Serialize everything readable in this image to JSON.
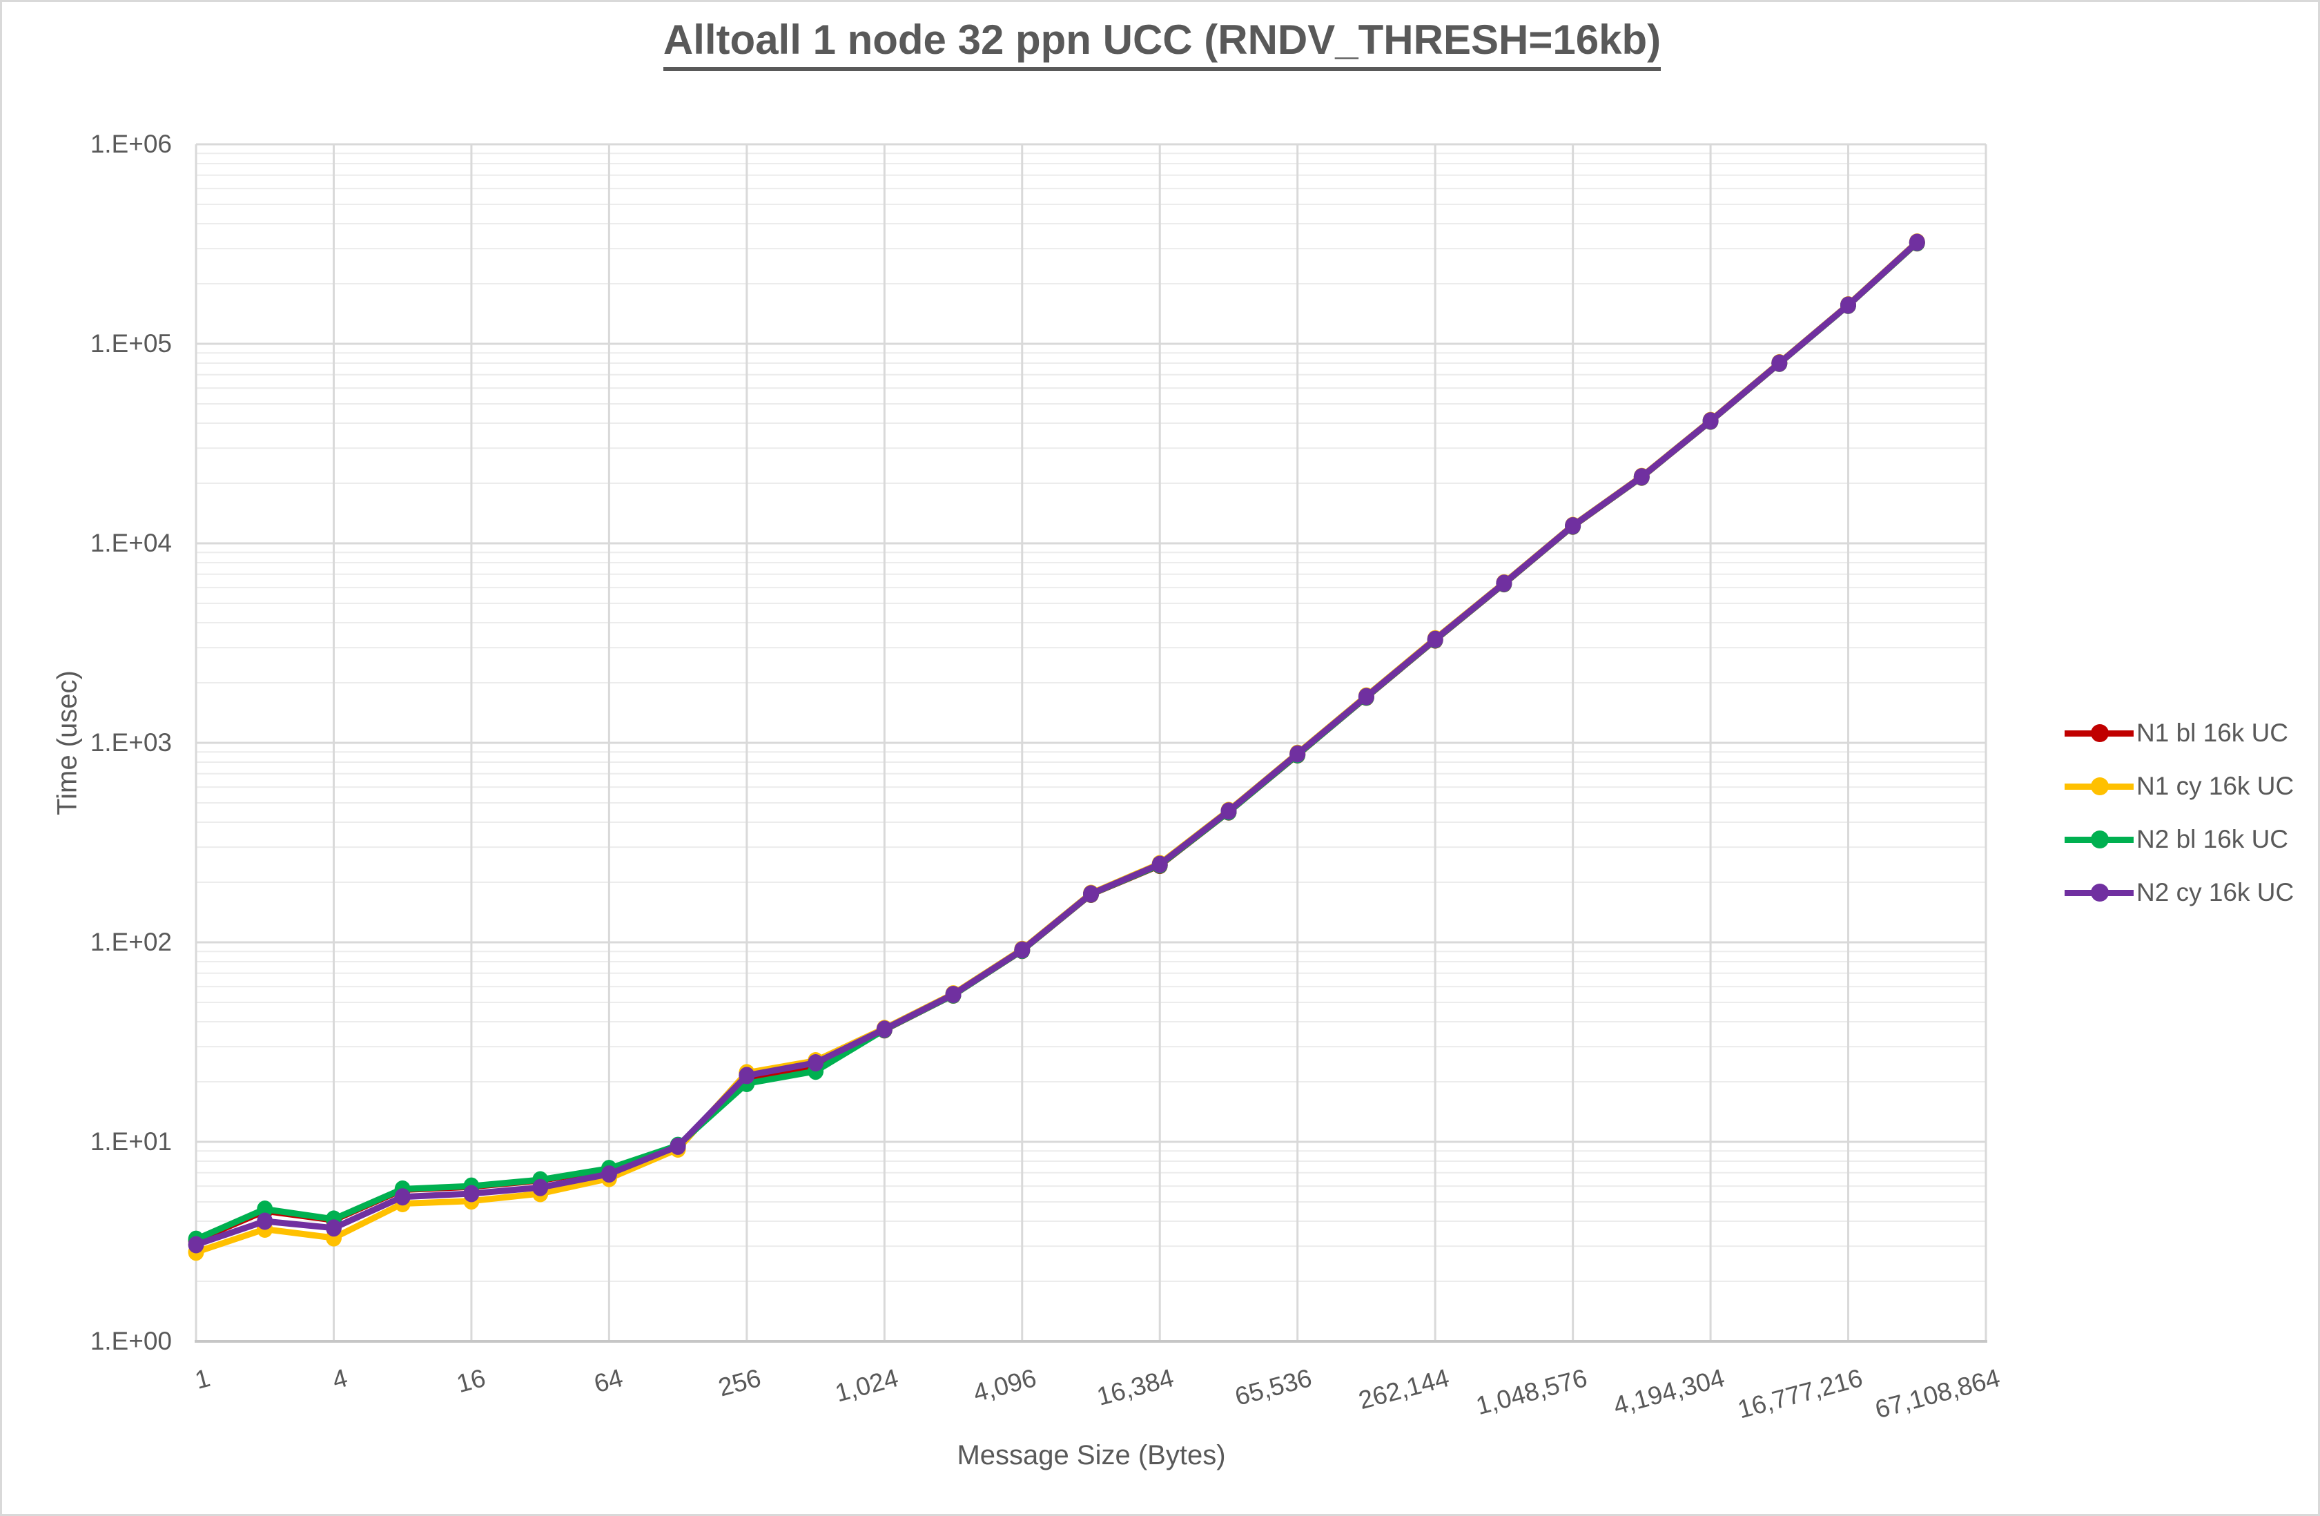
{
  "title": "Alltoall 1 node 32 ppn UCC (RNDV_THRESH=16kb)",
  "chart_data": {
    "type": "line",
    "title": "Alltoall 1 node 32 ppn UCC (RNDV_THRESH=16kb)",
    "xlabel": "Message Size (Bytes)",
    "ylabel": "Time (usec)",
    "x_scale": "log2-categories",
    "y_scale": "log10",
    "ylim": [
      1,
      1000000
    ],
    "x_axis_max": 67108864,
    "grid": "major-vertical, major+minor-horizontal",
    "legend_position": "right",
    "y_tick_labels": [
      "1.E+00",
      "1.E+01",
      "1.E+02",
      "1.E+03",
      "1.E+04",
      "1.E+05",
      "1.E+06"
    ],
    "x_tick_labels": [
      "1",
      "4",
      "16",
      "64",
      "256",
      "1,024",
      "4,096",
      "16,384",
      "65,536",
      "262,144",
      "1,048,576",
      "4,194,304",
      "16,777,216",
      "67,108,864"
    ],
    "x": [
      1,
      2,
      4,
      8,
      16,
      32,
      64,
      128,
      256,
      512,
      1024,
      2048,
      4096,
      8192,
      16384,
      32768,
      65536,
      131072,
      262144,
      524288,
      1048576,
      2097152,
      4194304,
      8388608,
      16777216,
      33554432
    ],
    "series": [
      {
        "name": "N1 bl 16k UC",
        "color": "#C00000",
        "values": [
          3.2,
          4.5,
          4.05,
          5.75,
          5.95,
          6.4,
          7.3,
          9.55,
          20.3,
          23.3,
          36.4,
          54.4,
          91,
          174,
          243,
          450,
          870,
          1692,
          3275,
          6270,
          12180,
          21450,
          40950,
          79800,
          155800,
          320500
        ]
      },
      {
        "name": "N1 cy 16k UC",
        "color": "#FFC000",
        "values": [
          2.8,
          3.65,
          3.3,
          4.9,
          5.05,
          5.5,
          6.55,
          9.2,
          22.2,
          25.5,
          37.0,
          55.2,
          92.2,
          176,
          248,
          458,
          886,
          1718,
          3325,
          6340,
          12300,
          21650,
          41250,
          80400,
          156800,
          324000
        ]
      },
      {
        "name": "N2 bl 16k UC",
        "color": "#00B050",
        "values": [
          3.25,
          4.6,
          4.1,
          5.8,
          6.0,
          6.45,
          7.35,
          9.6,
          19.6,
          22.6,
          36.5,
          54.5,
          91.2,
          174.5,
          244,
          451,
          872,
          1696,
          3285,
          6285,
          12210,
          21500,
          41000,
          79900,
          156000,
          321000
        ]
      },
      {
        "name": "N2 cy 16k UC",
        "color": "#7030A0",
        "values": [
          3.05,
          4.0,
          3.7,
          5.3,
          5.5,
          5.9,
          6.9,
          9.5,
          21.5,
          24.9,
          36.7,
          54.8,
          91.6,
          175,
          246,
          455,
          880,
          1706,
          3300,
          6310,
          12250,
          21550,
          41100,
          80100,
          156300,
          322500
        ]
      }
    ],
    "colors": {
      "text": "#595959",
      "grid_major": "#d9d9d9",
      "grid_minor": "#ececec",
      "axis_line": "#c6c6c6",
      "background": "#ffffff"
    }
  }
}
